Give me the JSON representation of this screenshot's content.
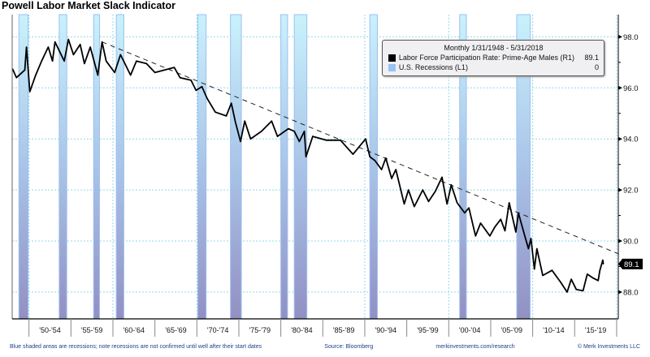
{
  "chart_data": {
    "type": "line",
    "title": "Powell Labor Market Slack Indicator",
    "xlabel": "",
    "ylabel": "",
    "xlim": [
      1948.0,
      2020.2
    ],
    "ylim": [
      86.95,
      98.87
    ],
    "y_ticks": [
      88.0,
      90.0,
      92.0,
      94.0,
      96.0,
      98.0
    ],
    "y_tick_labels": [
      "88.0",
      "90.0",
      "92.0",
      "94.0",
      "96.0",
      "98.0"
    ],
    "x_gridlines": [
      1950,
      1960,
      1970,
      1980,
      1990,
      2000,
      2010,
      2020
    ],
    "x_tick_bounds": [
      1950,
      1955,
      1960,
      1965,
      1970,
      1975,
      1980,
      1985,
      1990,
      1995,
      2000,
      2005,
      2010,
      2015,
      2020
    ],
    "x_tick_labels": [
      "'50-'54",
      "'55-'59",
      "'60-'64",
      "'65-'69",
      "'70-'74",
      "'75-'79",
      "'80-'84",
      "'85-'89",
      "'90-'94",
      "'95-'99",
      "'00-'04",
      "'05-'09",
      "'10-'14",
      "'15-'19"
    ],
    "grid": true,
    "legend": {
      "placement": "top-right",
      "header": "Monthly 1/31/1948 - 5/31/2018",
      "entries": [
        {
          "label": "Labor Force Participation Rate: Prime-Age Males (R1)",
          "value": "89.1",
          "color": "#000000"
        },
        {
          "label": "U.S. Recessions (L1)",
          "value": "0",
          "color": "#99c2f5"
        }
      ]
    },
    "last_value_label": "89.1",
    "series": [
      {
        "name": "Labor Force Participation Rate: Prime-Age Males",
        "x": [
          1948.05,
          1948.5,
          1949.5,
          1949.7,
          1950.1,
          1950.8,
          1951.5,
          1952.3,
          1952.8,
          1953.1,
          1954.2,
          1954.7,
          1955.3,
          1956.1,
          1956.6,
          1957.3,
          1958.2,
          1958.7,
          1959.2,
          1960.2,
          1960.9,
          1962.1,
          1962.8,
          1964.0,
          1965.0,
          1967.3,
          1968.0,
          1969.3,
          1969.9,
          1970.6,
          1971.2,
          1972.2,
          1973.5,
          1974.1,
          1974.6,
          1975.2,
          1975.7,
          1976.4,
          1977.7,
          1978.9,
          1979.6,
          1980.9,
          1981.6,
          1982.2,
          1982.8,
          1983.0,
          1983.8,
          1985.4,
          1987.1,
          1988.6,
          1990.1,
          1990.6,
          1991.2,
          1992.0,
          1992.5,
          1993.2,
          1993.7,
          1994.7,
          1995.2,
          1995.9,
          1996.9,
          1997.6,
          1998.4,
          1999.2,
          1999.8,
          2000.3,
          2001.0,
          2001.9,
          2002.4,
          2003.2,
          2003.8,
          2004.9,
          2005.5,
          2006.2,
          2006.7,
          2007.2,
          2008.0,
          2008.3,
          2009.1,
          2009.5,
          2009.8,
          2010.2,
          2010.5,
          2011.2,
          2012.3,
          2013.3,
          2014.1,
          2014.6,
          2015.2,
          2016.0,
          2016.5,
          2017.2,
          2017.8,
          2018.0,
          2018.35,
          2018.42
        ],
        "y": [
          96.74,
          96.4,
          96.7,
          97.6,
          95.85,
          96.5,
          97.05,
          97.6,
          97.05,
          97.8,
          97.05,
          97.9,
          97.3,
          97.7,
          96.95,
          97.6,
          96.5,
          97.8,
          97.05,
          96.6,
          97.3,
          96.5,
          97.05,
          96.95,
          96.6,
          96.8,
          96.4,
          96.3,
          95.9,
          96.05,
          95.6,
          95.05,
          94.9,
          95.4,
          94.65,
          93.9,
          94.7,
          94.0,
          94.3,
          94.7,
          94.1,
          94.4,
          94.3,
          93.9,
          94.3,
          93.3,
          94.1,
          93.95,
          93.95,
          93.4,
          94.0,
          93.3,
          93.15,
          92.8,
          93.25,
          92.45,
          92.8,
          91.45,
          92.0,
          91.35,
          92.0,
          91.55,
          91.95,
          92.5,
          91.45,
          92.2,
          91.5,
          91.1,
          91.3,
          90.2,
          90.7,
          90.2,
          90.55,
          90.85,
          90.4,
          91.5,
          90.35,
          91.1,
          90.15,
          89.7,
          90.1,
          88.9,
          89.7,
          88.65,
          88.85,
          88.4,
          88.0,
          88.5,
          88.1,
          88.05,
          88.7,
          88.55,
          88.45,
          88.85,
          89.25,
          89.1
        ],
        "color": "#000000"
      }
    ],
    "trendline": {
      "x": [
        1958.7,
        2020.2
      ],
      "y": [
        97.8,
        89.5
      ],
      "style": "dashed"
    },
    "recessions": [
      [
        1948.8,
        1949.9
      ],
      [
        1953.6,
        1954.5
      ],
      [
        1957.7,
        1958.4
      ],
      [
        1960.4,
        1961.3
      ],
      [
        1970.1,
        1971.1
      ],
      [
        1974.0,
        1975.3
      ],
      [
        1980.0,
        1980.8
      ],
      [
        1981.6,
        1983.1
      ],
      [
        1990.6,
        1991.5
      ],
      [
        2001.3,
        2002.1
      ],
      [
        2008.1,
        2009.7
      ]
    ]
  },
  "footer": {
    "note": "Blue shaded areas are recessions; note recessions are not confirmed until well after their start dates",
    "source": "Source: Bloomberg",
    "url": "merkinvestments.com/research",
    "copyright": "© Merk Investments LLC"
  }
}
